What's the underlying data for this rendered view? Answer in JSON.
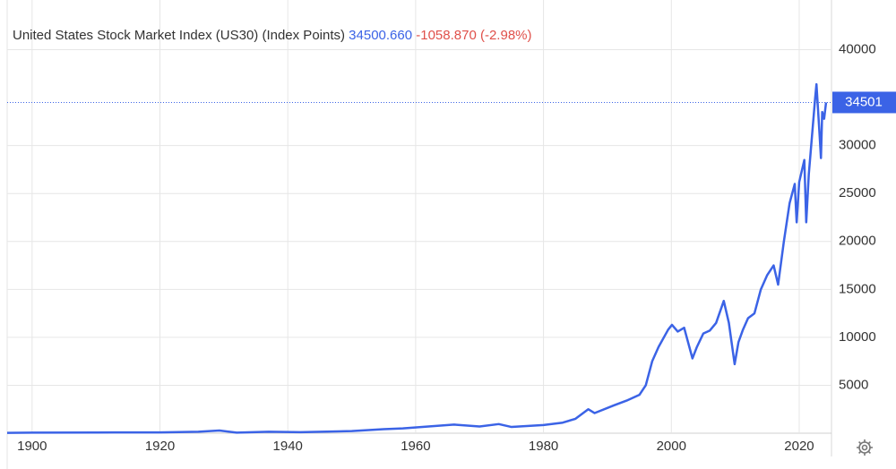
{
  "chart_data": {
    "type": "line",
    "title": "United States Stock Market Index (US30) (Index Points)",
    "last": "34500.660",
    "change": "-1058.870 (-2.98%)",
    "current": 34501,
    "x": [
      1896.1,
      1900,
      1910,
      1920,
      1926,
      1929.3,
      1932,
      1937,
      1942,
      1950,
      1955,
      1958,
      1966,
      1970,
      1973,
      1975,
      1980,
      1983,
      1985,
      1987,
      1988,
      1991,
      1993,
      1995,
      1996,
      1997,
      1998,
      1999.5,
      2000.1,
      2001,
      2002,
      2003.3,
      2004,
      2005,
      2006,
      2007,
      2008.2,
      2009,
      2009.9,
      2010.5,
      2011.2,
      2012,
      2013,
      2014,
      2015,
      2016,
      2016.7,
      2017.6,
      2018.5,
      2019.3,
      2019.6,
      2020,
      2020.8,
      2021.1,
      2021.5,
      2022,
      2022.5,
      2022.7,
      2023.2,
      2023.4,
      2023.6,
      2023.9,
      2024.2
    ],
    "series": [
      {
        "name": "US30",
        "color": "#3b63e6",
        "values": [
          40,
          55,
          75,
          80,
          150,
          280,
          60,
          150,
          100,
          220,
          420,
          500,
          900,
          700,
          950,
          650,
          850,
          1100,
          1500,
          2500,
          2100,
          2900,
          3400,
          4000,
          5000,
          7500,
          9000,
          10800,
          11300,
          10600,
          11000,
          7800,
          9000,
          10400,
          10700,
          11500,
          13800,
          11500,
          7200,
          9500,
          10800,
          12000,
          12500,
          15000,
          16500,
          17500,
          15500,
          20000,
          24000,
          26000,
          22000,
          26200,
          28500,
          22000,
          27000,
          31000,
          35000,
          36400,
          31000,
          28700,
          33500,
          32800,
          34500
        ]
      }
    ],
    "xlim": [
      1896.1,
      2025.05
    ],
    "ylim": [
      0,
      45000
    ],
    "xticks": [
      1900,
      1920,
      1940,
      1960,
      1980,
      2000,
      2020
    ],
    "yticks": [
      5000,
      10000,
      15000,
      20000,
      25000,
      30000,
      40000
    ],
    "grid": true
  }
}
